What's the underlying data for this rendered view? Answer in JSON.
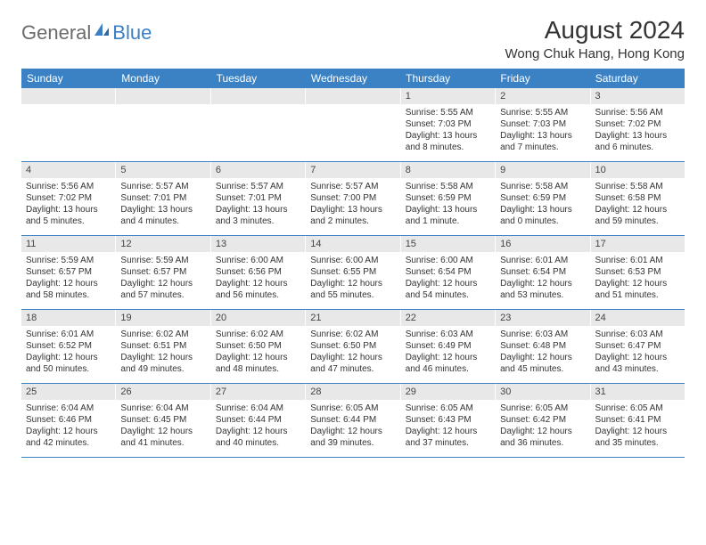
{
  "logo": {
    "text1": "General",
    "text2": "Blue"
  },
  "title": "August 2024",
  "location": "Wong Chuk Hang, Hong Kong",
  "colors": {
    "header_bg": "#3b82c4",
    "daynum_bg": "#e8e8e8",
    "border": "#3b82c4",
    "logo_gray": "#6b6b6b",
    "logo_blue": "#3b7fc4"
  },
  "day_names": [
    "Sunday",
    "Monday",
    "Tuesday",
    "Wednesday",
    "Thursday",
    "Friday",
    "Saturday"
  ],
  "weeks": [
    [
      {
        "n": "",
        "empty": true
      },
      {
        "n": "",
        "empty": true
      },
      {
        "n": "",
        "empty": true
      },
      {
        "n": "",
        "empty": true
      },
      {
        "n": "1",
        "sr": "Sunrise: 5:55 AM",
        "ss": "Sunset: 7:03 PM",
        "dl1": "Daylight: 13 hours",
        "dl2": "and 8 minutes."
      },
      {
        "n": "2",
        "sr": "Sunrise: 5:55 AM",
        "ss": "Sunset: 7:03 PM",
        "dl1": "Daylight: 13 hours",
        "dl2": "and 7 minutes."
      },
      {
        "n": "3",
        "sr": "Sunrise: 5:56 AM",
        "ss": "Sunset: 7:02 PM",
        "dl1": "Daylight: 13 hours",
        "dl2": "and 6 minutes."
      }
    ],
    [
      {
        "n": "4",
        "sr": "Sunrise: 5:56 AM",
        "ss": "Sunset: 7:02 PM",
        "dl1": "Daylight: 13 hours",
        "dl2": "and 5 minutes."
      },
      {
        "n": "5",
        "sr": "Sunrise: 5:57 AM",
        "ss": "Sunset: 7:01 PM",
        "dl1": "Daylight: 13 hours",
        "dl2": "and 4 minutes."
      },
      {
        "n": "6",
        "sr": "Sunrise: 5:57 AM",
        "ss": "Sunset: 7:01 PM",
        "dl1": "Daylight: 13 hours",
        "dl2": "and 3 minutes."
      },
      {
        "n": "7",
        "sr": "Sunrise: 5:57 AM",
        "ss": "Sunset: 7:00 PM",
        "dl1": "Daylight: 13 hours",
        "dl2": "and 2 minutes."
      },
      {
        "n": "8",
        "sr": "Sunrise: 5:58 AM",
        "ss": "Sunset: 6:59 PM",
        "dl1": "Daylight: 13 hours",
        "dl2": "and 1 minute."
      },
      {
        "n": "9",
        "sr": "Sunrise: 5:58 AM",
        "ss": "Sunset: 6:59 PM",
        "dl1": "Daylight: 13 hours",
        "dl2": "and 0 minutes."
      },
      {
        "n": "10",
        "sr": "Sunrise: 5:58 AM",
        "ss": "Sunset: 6:58 PM",
        "dl1": "Daylight: 12 hours",
        "dl2": "and 59 minutes."
      }
    ],
    [
      {
        "n": "11",
        "sr": "Sunrise: 5:59 AM",
        "ss": "Sunset: 6:57 PM",
        "dl1": "Daylight: 12 hours",
        "dl2": "and 58 minutes."
      },
      {
        "n": "12",
        "sr": "Sunrise: 5:59 AM",
        "ss": "Sunset: 6:57 PM",
        "dl1": "Daylight: 12 hours",
        "dl2": "and 57 minutes."
      },
      {
        "n": "13",
        "sr": "Sunrise: 6:00 AM",
        "ss": "Sunset: 6:56 PM",
        "dl1": "Daylight: 12 hours",
        "dl2": "and 56 minutes."
      },
      {
        "n": "14",
        "sr": "Sunrise: 6:00 AM",
        "ss": "Sunset: 6:55 PM",
        "dl1": "Daylight: 12 hours",
        "dl2": "and 55 minutes."
      },
      {
        "n": "15",
        "sr": "Sunrise: 6:00 AM",
        "ss": "Sunset: 6:54 PM",
        "dl1": "Daylight: 12 hours",
        "dl2": "and 54 minutes."
      },
      {
        "n": "16",
        "sr": "Sunrise: 6:01 AM",
        "ss": "Sunset: 6:54 PM",
        "dl1": "Daylight: 12 hours",
        "dl2": "and 53 minutes."
      },
      {
        "n": "17",
        "sr": "Sunrise: 6:01 AM",
        "ss": "Sunset: 6:53 PM",
        "dl1": "Daylight: 12 hours",
        "dl2": "and 51 minutes."
      }
    ],
    [
      {
        "n": "18",
        "sr": "Sunrise: 6:01 AM",
        "ss": "Sunset: 6:52 PM",
        "dl1": "Daylight: 12 hours",
        "dl2": "and 50 minutes."
      },
      {
        "n": "19",
        "sr": "Sunrise: 6:02 AM",
        "ss": "Sunset: 6:51 PM",
        "dl1": "Daylight: 12 hours",
        "dl2": "and 49 minutes."
      },
      {
        "n": "20",
        "sr": "Sunrise: 6:02 AM",
        "ss": "Sunset: 6:50 PM",
        "dl1": "Daylight: 12 hours",
        "dl2": "and 48 minutes."
      },
      {
        "n": "21",
        "sr": "Sunrise: 6:02 AM",
        "ss": "Sunset: 6:50 PM",
        "dl1": "Daylight: 12 hours",
        "dl2": "and 47 minutes."
      },
      {
        "n": "22",
        "sr": "Sunrise: 6:03 AM",
        "ss": "Sunset: 6:49 PM",
        "dl1": "Daylight: 12 hours",
        "dl2": "and 46 minutes."
      },
      {
        "n": "23",
        "sr": "Sunrise: 6:03 AM",
        "ss": "Sunset: 6:48 PM",
        "dl1": "Daylight: 12 hours",
        "dl2": "and 45 minutes."
      },
      {
        "n": "24",
        "sr": "Sunrise: 6:03 AM",
        "ss": "Sunset: 6:47 PM",
        "dl1": "Daylight: 12 hours",
        "dl2": "and 43 minutes."
      }
    ],
    [
      {
        "n": "25",
        "sr": "Sunrise: 6:04 AM",
        "ss": "Sunset: 6:46 PM",
        "dl1": "Daylight: 12 hours",
        "dl2": "and 42 minutes."
      },
      {
        "n": "26",
        "sr": "Sunrise: 6:04 AM",
        "ss": "Sunset: 6:45 PM",
        "dl1": "Daylight: 12 hours",
        "dl2": "and 41 minutes."
      },
      {
        "n": "27",
        "sr": "Sunrise: 6:04 AM",
        "ss": "Sunset: 6:44 PM",
        "dl1": "Daylight: 12 hours",
        "dl2": "and 40 minutes."
      },
      {
        "n": "28",
        "sr": "Sunrise: 6:05 AM",
        "ss": "Sunset: 6:44 PM",
        "dl1": "Daylight: 12 hours",
        "dl2": "and 39 minutes."
      },
      {
        "n": "29",
        "sr": "Sunrise: 6:05 AM",
        "ss": "Sunset: 6:43 PM",
        "dl1": "Daylight: 12 hours",
        "dl2": "and 37 minutes."
      },
      {
        "n": "30",
        "sr": "Sunrise: 6:05 AM",
        "ss": "Sunset: 6:42 PM",
        "dl1": "Daylight: 12 hours",
        "dl2": "and 36 minutes."
      },
      {
        "n": "31",
        "sr": "Sunrise: 6:05 AM",
        "ss": "Sunset: 6:41 PM",
        "dl1": "Daylight: 12 hours",
        "dl2": "and 35 minutes."
      }
    ]
  ]
}
